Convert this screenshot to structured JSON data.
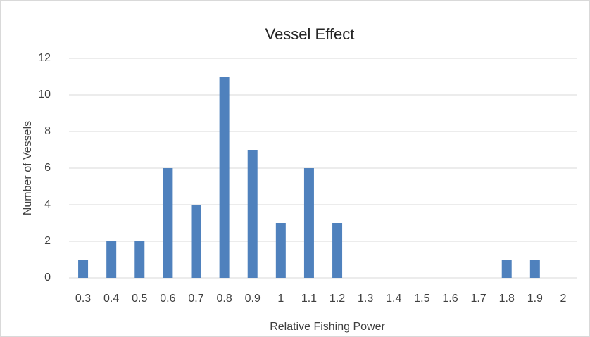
{
  "chart_data": {
    "type": "bar",
    "title": "Vessel Effect",
    "x_label": "Relative Fishing Power",
    "y_label": "Number of Vessels",
    "categories": [
      "0.3",
      "0.4",
      "0.5",
      "0.6",
      "0.7",
      "0.8",
      "0.9",
      "1",
      "1.1",
      "1.2",
      "1.3",
      "1.4",
      "1.5",
      "1.6",
      "1.7",
      "1.8",
      "1.9",
      "2"
    ],
    "values": [
      1,
      2,
      2,
      6,
      4,
      11,
      7,
      3,
      6,
      3,
      0,
      0,
      0,
      0,
      0,
      1,
      1,
      0
    ],
    "color": "#4f81bd",
    "ylim": [
      0,
      12
    ],
    "yticks": [
      0,
      2,
      4,
      6,
      8,
      10,
      12
    ],
    "grid": true
  }
}
